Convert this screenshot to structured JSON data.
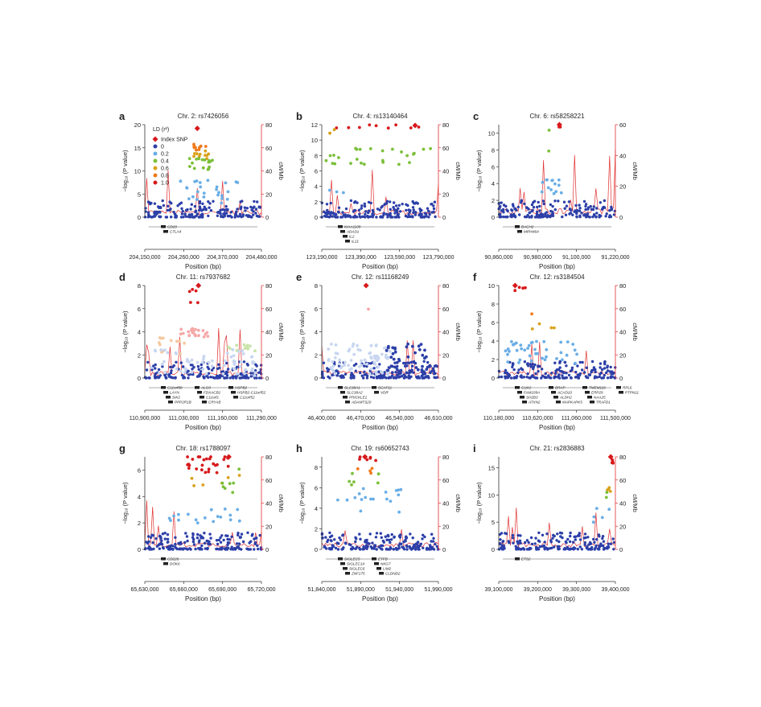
{
  "figure": {
    "y_label_left": "−log₁₀ (P value)",
    "y_label_right": "cM/Mb",
    "x_label": "Position (bp)",
    "legend": {
      "title": "LD (r²)",
      "entries": [
        {
          "label": "Index SNP",
          "color": "#d7191c",
          "shape": "diamond"
        },
        {
          "label": "0",
          "color": "#2c3fa8",
          "shape": "circle"
        },
        {
          "label": "0.2",
          "color": "#6aaee6",
          "shape": "circle"
        },
        {
          "label": "0.4",
          "color": "#7bbf3a",
          "shape": "circle"
        },
        {
          "label": "0.6",
          "color": "#d9a21a",
          "shape": "circle"
        },
        {
          "label": "0.8",
          "color": "#f07a1a",
          "shape": "circle"
        },
        {
          "label": "1.0",
          "color": "#d7191c",
          "shape": "circle"
        }
      ]
    },
    "colors": {
      "recomb": "#e03030",
      "index": "#d7191c",
      "axis": "#333333"
    }
  },
  "chart_data": [
    {
      "type": "scatter",
      "letter": "a",
      "title": "Chr. 2: rs7426056",
      "ylim": [
        0,
        20
      ],
      "yticks": [
        0,
        5,
        10,
        15,
        20
      ],
      "ylim_right": [
        0,
        80
      ],
      "yticks_right": [
        0,
        20,
        40,
        60,
        80
      ],
      "xticks": [
        "204,150,000",
        "204,260,000",
        "204,370,000",
        "204,480,000"
      ],
      "index": {
        "x": 0.45,
        "y": 19.2
      },
      "clusters": [
        {
          "c": "#f07a1a",
          "x0": 0.42,
          "x1": 0.55,
          "y0": 14.5,
          "y1": 16.0,
          "n": 9
        },
        {
          "c": "#d9a21a",
          "x0": 0.4,
          "x1": 0.55,
          "y0": 12.5,
          "y1": 14.5,
          "n": 10
        },
        {
          "c": "#7bbf3a",
          "x0": 0.38,
          "x1": 0.58,
          "y0": 10.0,
          "y1": 13.0,
          "n": 16
        },
        {
          "c": "#6aaee6",
          "x0": 0.3,
          "x1": 0.8,
          "y0": 3.0,
          "y1": 8.0,
          "n": 26
        }
      ],
      "genes": [
        "CD28",
        "CTLA4"
      ]
    },
    {
      "type": "scatter",
      "letter": "b",
      "title": "Chr. 4: rs13140464",
      "ylim": [
        0,
        12
      ],
      "yticks": [
        0,
        2,
        4,
        6,
        8,
        10,
        12
      ],
      "ylim_right": [
        0,
        80
      ],
      "yticks_right": [
        0,
        20,
        40,
        60,
        80
      ],
      "xticks": [
        "123,190,000",
        "123,390,000",
        "123,590,000",
        "123,790,000"
      ],
      "index": {
        "x": 0.8,
        "y": 11.9
      },
      "clusters": [
        {
          "c": "#d7191c",
          "x0": 0.05,
          "x1": 0.95,
          "y0": 11.3,
          "y1": 12.0,
          "n": 9
        },
        {
          "c": "#d9a21a",
          "x0": 0.03,
          "x1": 0.12,
          "y0": 10.8,
          "y1": 11.4,
          "n": 3
        },
        {
          "c": "#7bbf3a",
          "x0": 0.03,
          "x1": 0.97,
          "y0": 6.8,
          "y1": 9.0,
          "n": 26
        },
        {
          "c": "#6aaee6",
          "x0": 0.02,
          "x1": 0.2,
          "y0": 3.0,
          "y1": 4.0,
          "n": 3
        }
      ],
      "genes": [
        "KIAA1109",
        "ADAD1",
        "IL2",
        "IL21"
      ]
    },
    {
      "type": "scatter",
      "letter": "c",
      "title": "Chr. 6: rs58258221",
      "ylim": [
        0,
        11
      ],
      "yticks": [
        0,
        2,
        4,
        6,
        8,
        10
      ],
      "ylim_right": [
        0,
        60
      ],
      "yticks_right": [
        0,
        20,
        40,
        60
      ],
      "xticks": [
        "90,860,000",
        "90,980,000",
        "91,100,000",
        "91,220,000"
      ],
      "index": {
        "x": 0.52,
        "y": 11.4
      },
      "clusters": [
        {
          "c": "#d7191c",
          "x0": 0.51,
          "x1": 0.53,
          "y0": 10.7,
          "y1": 11.3,
          "n": 3
        },
        {
          "c": "#7bbf3a",
          "x0": 0.4,
          "x1": 0.48,
          "y0": 7.2,
          "y1": 11.5,
          "n": 2
        },
        {
          "c": "#6aaee6",
          "x0": 0.35,
          "x1": 0.55,
          "y0": 2.5,
          "y1": 4.5,
          "n": 14
        }
      ],
      "genes": [
        "BACH2",
        "MIR4464"
      ]
    },
    {
      "type": "scatter",
      "letter": "d",
      "title": "Chr. 11: rs7937682",
      "ylim": [
        0,
        8
      ],
      "yticks": [
        0,
        2,
        4,
        6,
        8
      ],
      "ylim_right": [
        0,
        80
      ],
      "yticks_right": [
        0,
        20,
        40,
        60,
        80
      ],
      "xticks": [
        "110,900,000",
        "111,030,000",
        "111,160,000",
        "111,290,000"
      ],
      "index": {
        "x": 0.46,
        "y": 8.2
      },
      "clusters": [
        {
          "c": "#d7191c",
          "x0": 0.38,
          "x1": 0.46,
          "y0": 6.5,
          "y1": 7.8,
          "n": 5
        },
        {
          "c": "#f5a8a8",
          "x0": 0.3,
          "x1": 0.55,
          "y0": 3.5,
          "y1": 4.3,
          "n": 22
        },
        {
          "c": "#f5c9a0",
          "x0": 0.12,
          "x1": 0.35,
          "y0": 2.0,
          "y1": 3.5,
          "n": 14
        },
        {
          "c": "#c9e3a8",
          "x0": 0.7,
          "x1": 0.95,
          "y0": 2.3,
          "y1": 2.9,
          "n": 12
        },
        {
          "c": "#c8d6f0",
          "x0": 0.05,
          "x1": 0.95,
          "y0": 0.2,
          "y1": 2.5,
          "n": 60
        }
      ],
      "genes": [
        "C11orf88",
        "LAYN",
        "SIK2",
        "PPP2R1B",
        "ALG9",
        "FDXACB1",
        "C11orf1",
        "CRYAB",
        "HSPB2",
        "HSPB2-C11orf52",
        "C11orf52"
      ]
    },
    {
      "type": "scatter",
      "letter": "e",
      "title": "Chr. 12: rs11168249",
      "ylim": [
        0,
        8
      ],
      "yticks": [
        0,
        2,
        4,
        6,
        8
      ],
      "ylim_right": [
        0,
        80
      ],
      "yticks_right": [
        0,
        20,
        40,
        60,
        80
      ],
      "xticks": [
        "46,400,000",
        "46,470,000",
        "46,540,000",
        "46,610,000"
      ],
      "index": {
        "x": 0.38,
        "y": 8.2
      },
      "clusters": [
        {
          "c": "#f5a8a8",
          "x0": 0.36,
          "x1": 0.4,
          "y0": 5.8,
          "y1": 6.1,
          "n": 1
        },
        {
          "c": "#c8d6f0",
          "x0": 0.05,
          "x1": 0.6,
          "y0": 0.3,
          "y1": 3.0,
          "n": 70
        },
        {
          "c": "#2c3fa8",
          "x0": 0.55,
          "x1": 0.9,
          "y0": 0.2,
          "y1": 3.0,
          "n": 45
        }
      ],
      "genes": [
        "SLC38A1",
        "SLC38A2",
        "PRICKLE1",
        "ADAMTS20",
        "SCAF11",
        "VDR"
      ]
    },
    {
      "type": "scatter",
      "letter": "f",
      "title": "Chr. 12: rs3184504",
      "ylim": [
        0,
        10
      ],
      "yticks": [
        0,
        2,
        4,
        6,
        8,
        10
      ],
      "ylim_right": [
        0,
        80
      ],
      "yticks_right": [
        0,
        20,
        40,
        60,
        80
      ],
      "xticks": [
        "110,180,000",
        "110,620,000",
        "111,060,000",
        "111,500,000"
      ],
      "index": {
        "x": 0.14,
        "y": 10.2
      },
      "clusters": [
        {
          "c": "#d7191c",
          "x0": 0.12,
          "x1": 0.24,
          "y0": 9.3,
          "y1": 10.0,
          "n": 4
        },
        {
          "c": "#f07a1a",
          "x0": 0.28,
          "x1": 0.3,
          "y0": 6.8,
          "y1": 7.0,
          "n": 1
        },
        {
          "c": "#d9a21a",
          "x0": 0.28,
          "x1": 0.6,
          "y0": 5.0,
          "y1": 6.0,
          "n": 4
        },
        {
          "c": "#6aaee6",
          "x0": 0.05,
          "x1": 0.7,
          "y0": 1.5,
          "y1": 4.0,
          "n": 40
        }
      ],
      "genes": [
        "CUX2",
        "FAM109A",
        "SH2B3",
        "ATXN2",
        "BRAP",
        "ACAD10",
        "ALDH2",
        "MAPKAPK5",
        "TMEM116",
        "ERP29",
        "NAA25",
        "TRAFD1",
        "RPL6",
        "PTPN11"
      ]
    },
    {
      "type": "scatter",
      "letter": "g",
      "title": "Chr. 18: rs1788097",
      "ylim": [
        0,
        7
      ],
      "yticks": [
        0,
        2,
        4,
        6
      ],
      "ylim_right": [
        0,
        80
      ],
      "yticks_right": [
        0,
        20,
        40,
        60,
        80
      ],
      "xticks": [
        "65,630,000",
        "65,660,000",
        "65,690,000",
        "65,720,000"
      ],
      "index": {
        "x": 0.72,
        "y": 7.2
      },
      "clusters": [
        {
          "c": "#d7191c",
          "x0": 0.35,
          "x1": 0.72,
          "y0": 5.8,
          "y1": 7.3,
          "n": 26
        },
        {
          "c": "#d9a21a",
          "x0": 0.4,
          "x1": 0.9,
          "y0": 4.8,
          "y1": 5.6,
          "n": 6
        },
        {
          "c": "#7bbf3a",
          "x0": 0.55,
          "x1": 0.95,
          "y0": 3.8,
          "y1": 6.2,
          "n": 7
        },
        {
          "c": "#6aaee6",
          "x0": 0.2,
          "x1": 0.95,
          "y0": 2.0,
          "y1": 3.2,
          "n": 18
        }
      ],
      "genes": [
        "CD226",
        "DOK6"
      ]
    },
    {
      "type": "scatter",
      "letter": "h",
      "title": "Chr. 19: rs60652743",
      "ylim": [
        0,
        9
      ],
      "yticks": [
        0,
        2,
        4,
        6,
        8
      ],
      "ylim_right": [
        0,
        80
      ],
      "yticks_right": [
        0,
        20,
        40,
        60,
        80
      ],
      "xticks": [
        "51,840,000",
        "51,890,000",
        "51,940,000",
        "51,990,000"
      ],
      "index": {
        "x": 0.37,
        "y": 9.0
      },
      "clusters": [
        {
          "c": "#d7191c",
          "x0": 0.3,
          "x1": 0.55,
          "y0": 8.5,
          "y1": 9.0,
          "n": 6
        },
        {
          "c": "#f07a1a",
          "x0": 0.3,
          "x1": 0.5,
          "y0": 7.4,
          "y1": 8.0,
          "n": 4
        },
        {
          "c": "#7bbf3a",
          "x0": 0.2,
          "x1": 0.5,
          "y0": 6.0,
          "y1": 7.6,
          "n": 6
        },
        {
          "c": "#6aaee6",
          "x0": 0.1,
          "x1": 0.7,
          "y0": 3.5,
          "y1": 6.0,
          "n": 18
        }
      ],
      "genes": [
        "SIGLEC5",
        "SIGLEC14",
        "SIGLEC6",
        "ZNF175",
        "ETFB",
        "NKG7",
        "LIM2",
        "CLDND2"
      ]
    },
    {
      "type": "scatter",
      "letter": "i",
      "title": "Chr. 21: rs2836883",
      "ylim": [
        0,
        17
      ],
      "yticks": [
        0,
        5,
        10,
        15
      ],
      "ylim_right": [
        0,
        80
      ],
      "yticks_right": [
        0,
        20,
        40,
        60,
        80
      ],
      "xticks": [
        "39,100,000",
        "39,200,000",
        "39,300,000",
        "39,400,000"
      ],
      "index": {
        "x": 0.96,
        "y": 17.0
      },
      "clusters": [
        {
          "c": "#d7191c",
          "x0": 0.94,
          "x1": 0.98,
          "y0": 15.8,
          "y1": 16.8,
          "n": 4
        },
        {
          "c": "#d9a21a",
          "x0": 0.92,
          "x1": 0.96,
          "y0": 10.6,
          "y1": 11.7,
          "n": 4
        },
        {
          "c": "#7bbf3a",
          "x0": 0.9,
          "x1": 0.95,
          "y0": 9.2,
          "y1": 10.5,
          "n": 2
        },
        {
          "c": "#6aaee6",
          "x0": 0.8,
          "x1": 0.95,
          "y0": 5.0,
          "y1": 8.0,
          "n": 5
        }
      ],
      "genes": [
        "ETS2"
      ]
    }
  ]
}
